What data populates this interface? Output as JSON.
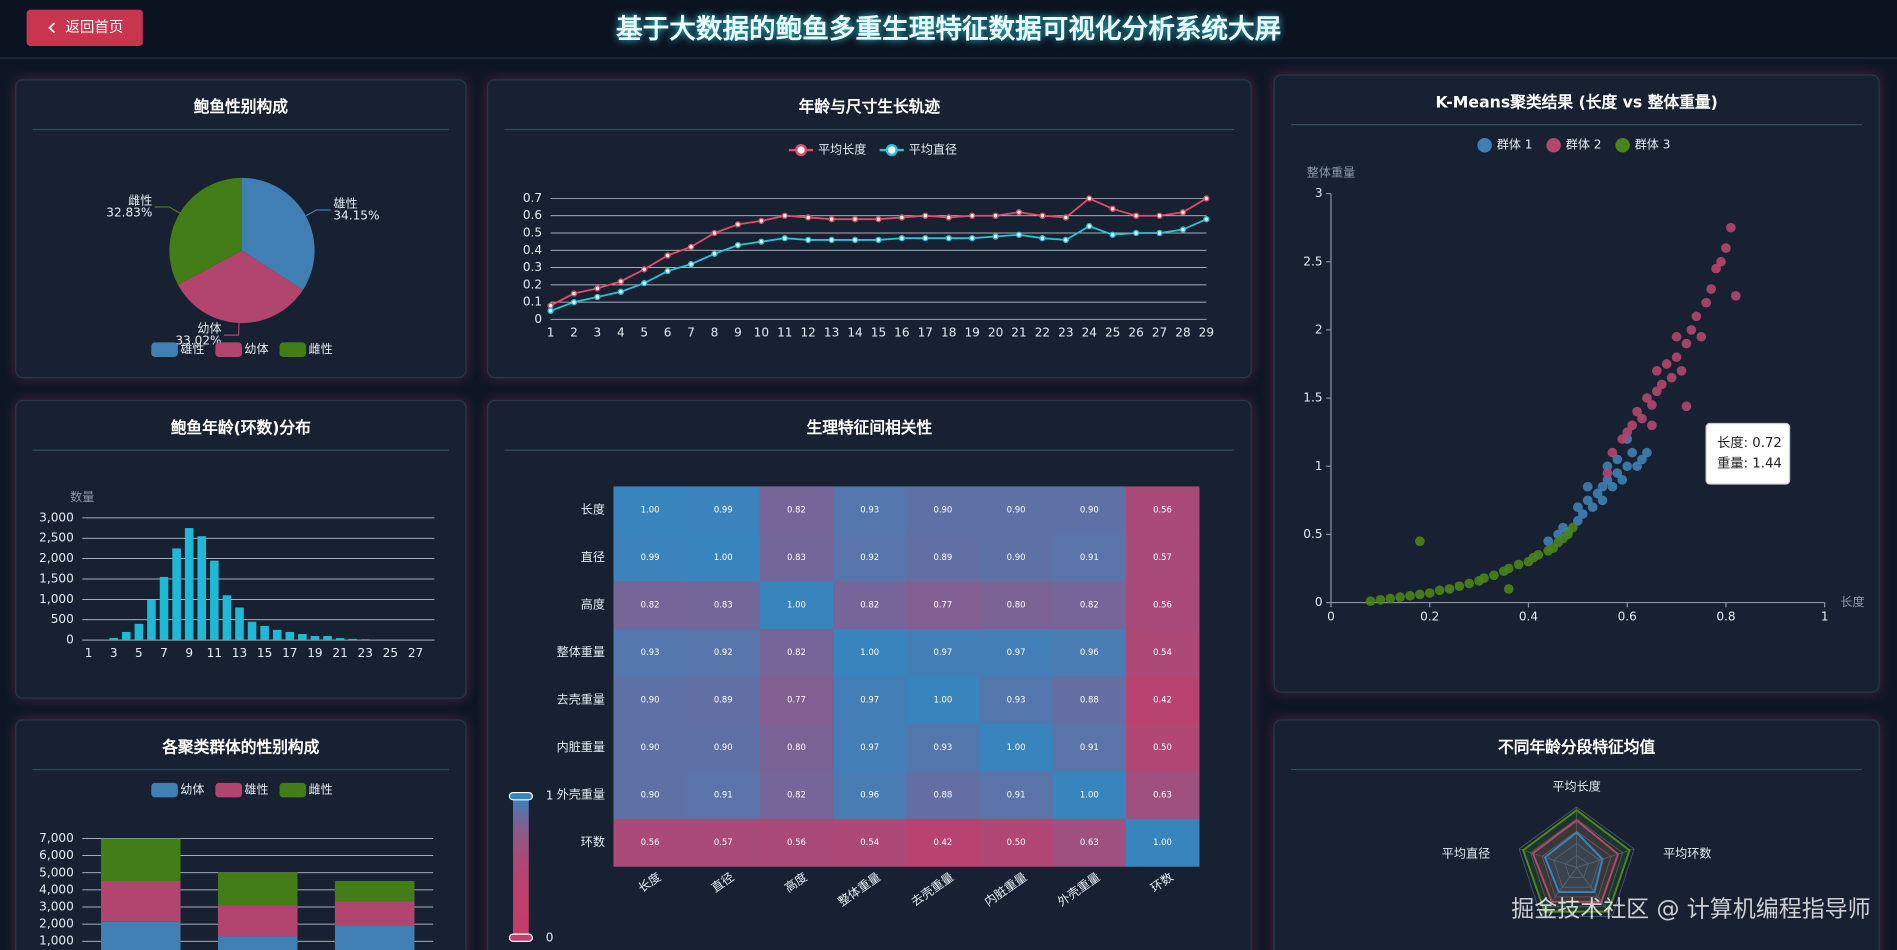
{
  "header": {
    "title": "基于大数据的鲍鱼多重生理特征数据可视化分析系统大屏",
    "back_button": "返回首页"
  },
  "watermark": "掘金技术社区 @ 计算机编程指导师",
  "chart_data": [
    {
      "type": "pie",
      "title": "鲍鱼性别构成",
      "categories": [
        "雄性",
        "幼体",
        "雌性"
      ],
      "values": [
        34.15,
        33.02,
        32.83
      ],
      "value_labels": [
        "34.15%",
        "33.02%",
        "32.83%"
      ],
      "colors": [
        "#3f7fb3",
        "#b2456e",
        "#437d18"
      ]
    },
    {
      "type": "line",
      "title": "年龄与尺寸生长轨迹",
      "categories": [
        "1",
        "2",
        "3",
        "4",
        "5",
        "6",
        "7",
        "8",
        "9",
        "10",
        "11",
        "12",
        "13",
        "14",
        "15",
        "16",
        "17",
        "18",
        "19",
        "20",
        "21",
        "22",
        "23",
        "24",
        "25",
        "26",
        "27",
        "28",
        "29"
      ],
      "series": [
        {
          "name": "平均长度",
          "color": "#e44a67",
          "values": [
            0.08,
            0.15,
            0.18,
            0.22,
            0.29,
            0.37,
            0.42,
            0.5,
            0.55,
            0.57,
            0.6,
            0.59,
            0.58,
            0.58,
            0.58,
            0.59,
            0.6,
            0.59,
            0.6,
            0.6,
            0.62,
            0.6,
            0.59,
            0.7,
            0.64,
            0.6,
            0.6,
            0.62,
            0.7
          ]
        },
        {
          "name": "平均直径",
          "color": "#28c2da",
          "values": [
            0.05,
            0.1,
            0.13,
            0.16,
            0.21,
            0.28,
            0.32,
            0.38,
            0.43,
            0.45,
            0.47,
            0.46,
            0.46,
            0.46,
            0.46,
            0.47,
            0.47,
            0.47,
            0.47,
            0.48,
            0.49,
            0.47,
            0.46,
            0.54,
            0.49,
            0.5,
            0.5,
            0.52,
            0.58
          ]
        }
      ],
      "ylim": [
        0,
        0.7
      ],
      "yticks": [
        0,
        0.1,
        0.2,
        0.3,
        0.4,
        0.5,
        0.6,
        0.7
      ],
      "grid": true
    },
    {
      "type": "scatter",
      "title": "K-Means聚类结果 (长度 vs 整体重量)",
      "xlabel": "长度",
      "ylabel": "整体重量",
      "xlim": [
        0,
        1
      ],
      "xticks": [
        0,
        0.2,
        0.4,
        0.6,
        0.8,
        1
      ],
      "ylim": [
        0,
        3
      ],
      "yticks": [
        0,
        0.5,
        1,
        1.5,
        2,
        2.5,
        3
      ],
      "series": [
        {
          "name": "群体 1",
          "color": "#3e7fb4",
          "x": [
            0.44,
            0.46,
            0.47,
            0.48,
            0.5,
            0.5,
            0.51,
            0.52,
            0.53,
            0.54,
            0.55,
            0.55,
            0.56,
            0.57,
            0.58,
            0.58,
            0.59,
            0.6,
            0.61,
            0.62,
            0.63,
            0.64,
            0.52,
            0.56,
            0.6
          ],
          "y": [
            0.45,
            0.5,
            0.55,
            0.52,
            0.6,
            0.7,
            0.65,
            0.75,
            0.7,
            0.8,
            0.85,
            0.75,
            0.9,
            0.85,
            0.95,
            1.05,
            0.9,
            1.0,
            1.1,
            1.0,
            1.05,
            1.1,
            0.85,
            1.0,
            1.2
          ]
        },
        {
          "name": "群体 2",
          "color": "#b4476f",
          "x": [
            0.57,
            0.59,
            0.6,
            0.61,
            0.62,
            0.63,
            0.64,
            0.65,
            0.66,
            0.66,
            0.67,
            0.68,
            0.69,
            0.7,
            0.7,
            0.71,
            0.72,
            0.72,
            0.73,
            0.74,
            0.75,
            0.76,
            0.77,
            0.78,
            0.79,
            0.8,
            0.81,
            0.82,
            0.56,
            0.65
          ],
          "y": [
            1.1,
            1.2,
            1.25,
            1.3,
            1.4,
            1.35,
            1.5,
            1.45,
            1.55,
            1.7,
            1.6,
            1.75,
            1.65,
            1.8,
            1.95,
            1.7,
            1.44,
            1.9,
            2.0,
            2.1,
            1.95,
            2.2,
            2.3,
            2.45,
            2.5,
            2.6,
            2.75,
            2.25,
            0.95,
            1.3
          ]
        },
        {
          "name": "群体 3",
          "color": "#4a8419",
          "x": [
            0.08,
            0.1,
            0.12,
            0.14,
            0.16,
            0.18,
            0.2,
            0.22,
            0.24,
            0.26,
            0.28,
            0.3,
            0.31,
            0.33,
            0.35,
            0.36,
            0.38,
            0.4,
            0.41,
            0.42,
            0.44,
            0.45,
            0.46,
            0.47,
            0.48,
            0.49,
            0.18,
            0.36
          ],
          "y": [
            0.01,
            0.02,
            0.03,
            0.04,
            0.05,
            0.06,
            0.07,
            0.09,
            0.1,
            0.12,
            0.14,
            0.16,
            0.18,
            0.2,
            0.23,
            0.25,
            0.28,
            0.3,
            0.33,
            0.35,
            0.38,
            0.4,
            0.44,
            0.47,
            0.5,
            0.55,
            0.45,
            0.1
          ]
        }
      ],
      "tooltip": [
        "长度: 0.72",
        "重量: 1.44"
      ]
    },
    {
      "type": "bar",
      "title": "鲍鱼年龄(环数)分布",
      "ylabel": "数量",
      "color": "#1fb9d8",
      "categories": [
        "1",
        null,
        "3",
        null,
        "5",
        null,
        "7",
        null,
        "9",
        null,
        "11",
        null,
        "13",
        null,
        "15",
        null,
        "17",
        null,
        "19",
        null,
        "21",
        null,
        "23",
        null,
        "25",
        null,
        "27",
        null
      ],
      "values": [
        5,
        10,
        50,
        200,
        400,
        1000,
        1550,
        2250,
        2750,
        2550,
        1950,
        1100,
        800,
        450,
        350,
        250,
        200,
        150,
        100,
        100,
        50,
        30,
        20,
        10,
        5,
        5,
        5,
        0
      ],
      "ylim": [
        0,
        3000
      ],
      "yticks": [
        0,
        500,
        {
          "value": 1000,
          "label": "1,000"
        },
        {
          "value": 1500,
          "label": "1,500"
        },
        {
          "value": 2000,
          "label": "2,000"
        },
        {
          "value": 2500,
          "label": "2,500"
        },
        {
          "value": 3000,
          "label": "3,000"
        }
      ],
      "grid": true
    },
    {
      "type": "heatmap",
      "title": "生理特征间相关性",
      "categories": [
        "长度",
        "直径",
        "高度",
        "整体重量",
        "去壳重量",
        "内脏重量",
        "外壳重量",
        "环数"
      ],
      "values": [
        [
          1.0,
          0.99,
          0.82,
          0.93,
          0.9,
          0.9,
          0.9,
          0.56
        ],
        [
          0.99,
          1.0,
          0.83,
          0.92,
          0.89,
          0.9,
          0.91,
          0.57
        ],
        [
          0.82,
          0.83,
          1.0,
          0.82,
          0.77,
          0.8,
          0.82,
          0.56
        ],
        [
          0.93,
          0.92,
          0.82,
          1.0,
          0.97,
          0.97,
          0.96,
          0.54
        ],
        [
          0.9,
          0.89,
          0.77,
          0.97,
          1.0,
          0.93,
          0.88,
          0.42
        ],
        [
          0.9,
          0.9,
          0.8,
          0.97,
          0.93,
          1.0,
          0.91,
          0.5
        ],
        [
          0.9,
          0.91,
          0.82,
          0.96,
          0.88,
          0.91,
          1.0,
          0.63
        ],
        [
          0.56,
          0.57,
          0.56,
          0.54,
          0.42,
          0.5,
          0.63,
          1.0
        ]
      ],
      "value_labels": [
        [
          "1.00",
          "0.99",
          "0.82",
          "0.93",
          "0.90",
          "0.90",
          "0.90",
          "0.56"
        ],
        [
          "0.99",
          "1.00",
          "0.83",
          "0.92",
          "0.89",
          "0.90",
          "0.91",
          "0.57"
        ],
        [
          "0.82",
          "0.83",
          "1.00",
          "0.82",
          "0.77",
          "0.80",
          "0.82",
          "0.56"
        ],
        [
          "0.93",
          "0.92",
          "0.82",
          "1.00",
          "0.97",
          "0.97",
          "0.96",
          "0.54"
        ],
        [
          "0.90",
          "0.89",
          "0.77",
          "0.97",
          "1.00",
          "0.93",
          "0.88",
          "0.42"
        ],
        [
          "0.90",
          "0.90",
          "0.80",
          "0.97",
          "0.93",
          "1.00",
          "0.91",
          "0.50"
        ],
        [
          "0.90",
          "0.91",
          "0.82",
          "0.96",
          "0.88",
          "0.91",
          "1.00",
          "0.63"
        ],
        [
          "0.56",
          "0.57",
          "0.56",
          "0.54",
          "0.42",
          "0.50",
          "0.63",
          "1.00"
        ]
      ],
      "visual_range": [
        0,
        1
      ],
      "color_range": [
        "#c23e6a",
        "#3884bd"
      ]
    },
    {
      "type": "bar",
      "title": "各聚类群体的性别构成",
      "stacked": true,
      "series": [
        {
          "name": "幼体",
          "color": "#3f7fb3",
          "values": [
            2130,
            1280,
            1920
          ]
        },
        {
          "name": "雄性",
          "color": "#b2456e",
          "values": [
            2390,
            1830,
            1400
          ]
        },
        {
          "name": "雌性",
          "color": "#437d18",
          "values": [
            2480,
            1900,
            1200
          ]
        }
      ],
      "ylim": [
        0,
        7000
      ],
      "yticks": [
        {
          "value": 1000,
          "label": "1,000"
        },
        {
          "value": 2000,
          "label": "2,000"
        },
        {
          "value": 3000,
          "label": "3,000"
        },
        {
          "value": 4000,
          "label": "4,000"
        },
        {
          "value": 5000,
          "label": "5,000"
        },
        {
          "value": 6000,
          "label": "6,000"
        },
        {
          "value": 7000,
          "label": "7,000"
        }
      ],
      "grid": true
    },
    {
      "type": "radar",
      "title": "不同年龄分段特征均值",
      "indicators": [
        "平均长度",
        "平均环数",
        null,
        null,
        "平均直径"
      ],
      "rlim": [
        0,
        1
      ],
      "series": [
        {
          "color": "#4a8a1c",
          "values": [
            0.95,
            0.92,
            0.9,
            0.9,
            0.93
          ]
        },
        {
          "color": "#b4476f",
          "values": [
            0.78,
            0.72,
            0.7,
            0.7,
            0.76
          ]
        },
        {
          "color": "#3d82b8",
          "values": [
            0.58,
            0.45,
            0.5,
            0.5,
            0.55
          ]
        }
      ]
    }
  ]
}
